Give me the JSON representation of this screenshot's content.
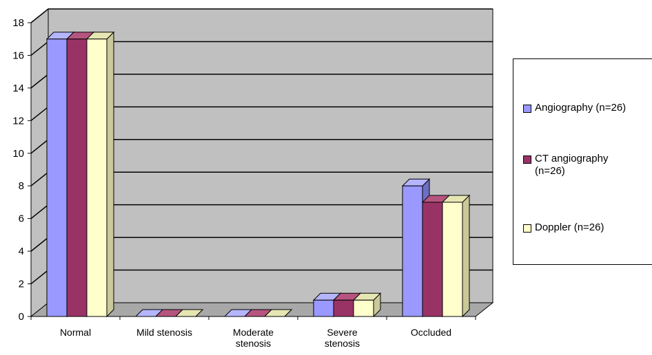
{
  "chart_data": {
    "type": "bar",
    "title": "",
    "xlabel": "",
    "ylabel": "",
    "ylim": [
      0,
      18
    ],
    "yticks": [
      0,
      2,
      4,
      6,
      8,
      10,
      12,
      14,
      16,
      18
    ],
    "grid": true,
    "legend_position": "right",
    "three_d": true,
    "categories": [
      [
        "Normal"
      ],
      [
        "Mild stenosis"
      ],
      [
        "Moderate",
        "stenosis"
      ],
      [
        "Severe",
        "stenosis"
      ],
      [
        "Occluded"
      ]
    ],
    "series": [
      {
        "name": "Angiography (n=26)",
        "label_lines": [
          "Angiography (n=26)"
        ],
        "values": [
          17,
          0,
          0,
          1,
          8
        ],
        "color": "#9999FF",
        "side_color": "#6E6EC2",
        "top_color": "#B5B5FF"
      },
      {
        "name": "CT angiography (n=26)",
        "label_lines": [
          "CT angiography",
          "(n=26)"
        ],
        "values": [
          17,
          0,
          0,
          1,
          7
        ],
        "color": "#993366",
        "side_color": "#6B2447",
        "top_color": "#B5557F"
      },
      {
        "name": "Doppler (n=26)",
        "label_lines": [
          "Doppler (n=26)"
        ],
        "values": [
          17,
          0,
          0,
          1,
          7
        ],
        "color": "#FFFFCC",
        "side_color": "#C9C99A",
        "top_color": "#E6E6B3"
      }
    ]
  },
  "colors": {
    "wall": "#C0C0C0",
    "floor": "#A8A8A8",
    "gridline": "#000000",
    "axis": "#000000"
  }
}
